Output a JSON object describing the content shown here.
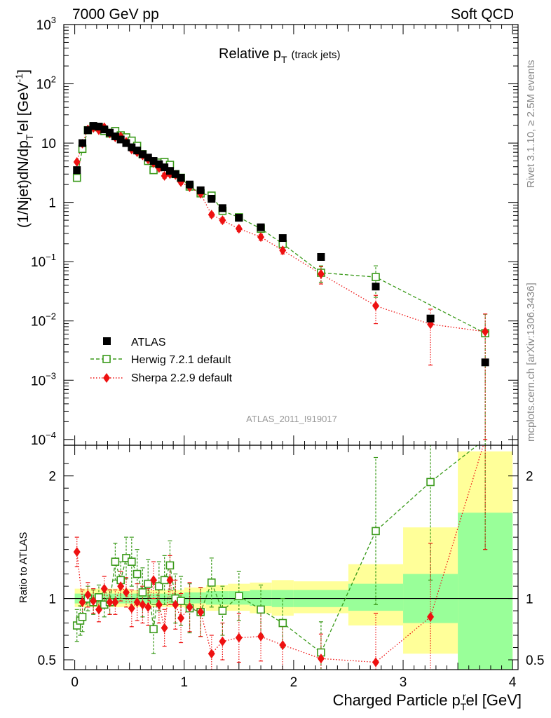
{
  "header": {
    "left": "7000 GeV pp",
    "right": "Soft QCD"
  },
  "side_labels": {
    "rivet": "Rivet 3.1.10, ≥ 2.5M events",
    "mcplots": "mcplots.cern.ch [arXiv:1306.3436]"
  },
  "analysis_id": "ATLAS_2011_I919017",
  "colors": {
    "atlas": "#000000",
    "herwig": "#3a9a1a",
    "sherpa": "#ee1111",
    "band_inner": "#99ff99",
    "band_outer": "#ffff99"
  },
  "chart_data": [
    {
      "type": "scatter",
      "panel": "main",
      "title_main": "Relative p",
      "title_sub": "T",
      "title_tail": "(track jets)",
      "ylabel": "(1/Njet)dN/dp_T^rel [GeV^-1]",
      "ylabel_parts": [
        "(1/Njet)dN/dp",
        "T",
        "r",
        "el [GeV",
        "-1",
        "]"
      ],
      "yscale": "log",
      "ylim": [
        8e-05,
        1000
      ],
      "xlim": [
        -0.1,
        4.05
      ],
      "grid": false,
      "legend_position": "bottom-left",
      "y_tick_labels": [
        {
          "v": 1000,
          "base": "10",
          "exp": "3"
        },
        {
          "v": 100,
          "base": "10",
          "exp": "2"
        },
        {
          "v": 10,
          "base": "10",
          "exp": ""
        },
        {
          "v": 1,
          "base": "1",
          "exp": ""
        },
        {
          "v": 0.1,
          "base": "10",
          "exp": "−1"
        },
        {
          "v": 0.01,
          "base": "10",
          "exp": "−2"
        },
        {
          "v": 0.001,
          "base": "10",
          "exp": "−3"
        },
        {
          "v": 0.0001,
          "base": "10",
          "exp": "−4"
        }
      ],
      "series": [
        {
          "name": "ATLAS",
          "marker": "square-filled",
          "x": [
            0.02,
            0.07,
            0.12,
            0.17,
            0.22,
            0.27,
            0.32,
            0.37,
            0.42,
            0.47,
            0.52,
            0.57,
            0.62,
            0.67,
            0.72,
            0.77,
            0.82,
            0.87,
            0.92,
            0.97,
            1.05,
            1.15,
            1.25,
            1.35,
            1.5,
            1.7,
            1.9,
            2.25,
            2.75,
            3.25,
            3.75
          ],
          "y": [
            3.5,
            10,
            16.5,
            19.5,
            19,
            17,
            15,
            13,
            11.5,
            10,
            8.5,
            7.5,
            6.5,
            5.7,
            5.0,
            4.4,
            3.9,
            3.4,
            3.0,
            2.6,
            2.0,
            1.6,
            1.15,
            0.8,
            0.55,
            0.38,
            0.25,
            0.12,
            0.038,
            0.011,
            0.002
          ]
        },
        {
          "name": "Herwig 7.2.1 default",
          "marker": "square-open",
          "line": "dashed",
          "x": [
            0.02,
            0.07,
            0.12,
            0.17,
            0.22,
            0.27,
            0.32,
            0.37,
            0.42,
            0.47,
            0.52,
            0.57,
            0.62,
            0.67,
            0.72,
            0.77,
            0.82,
            0.87,
            0.92,
            0.97,
            1.05,
            1.15,
            1.25,
            1.35,
            1.5,
            1.7,
            1.9,
            2.25,
            2.75,
            3.75
          ],
          "y": [
            2.6,
            8.0,
            16.5,
            19,
            18.5,
            16,
            14.5,
            16,
            13.5,
            12.5,
            11.0,
            9.0,
            6.5,
            5.0,
            3.5,
            4.7,
            4.8,
            4.3,
            3.0,
            2.6,
            1.85,
            1.42,
            1.3,
            0.72,
            0.56,
            0.36,
            0.2,
            0.065,
            0.055,
            0.0062
          ],
          "yerr": [
            0.2,
            0.5,
            0.8,
            0.9,
            0.9,
            0.8,
            0.7,
            0.8,
            0.7,
            0.7,
            0.6,
            0.5,
            0.4,
            0.35,
            0.3,
            0.35,
            0.35,
            0.3,
            0.25,
            0.2,
            0.15,
            0.12,
            0.1,
            0.07,
            0.05,
            0.04,
            0.025,
            0.02,
            0.03,
            0.0068
          ]
        },
        {
          "name": "Sherpa 2.2.9 default",
          "marker": "diamond-filled",
          "line": "dotted",
          "x": [
            0.02,
            0.07,
            0.12,
            0.17,
            0.22,
            0.27,
            0.32,
            0.37,
            0.42,
            0.47,
            0.52,
            0.57,
            0.62,
            0.67,
            0.72,
            0.77,
            0.82,
            0.87,
            0.92,
            0.97,
            1.05,
            1.15,
            1.25,
            1.35,
            1.5,
            1.7,
            1.9,
            2.25,
            2.75,
            3.25,
            3.75
          ],
          "y": [
            4.8,
            9.8,
            17,
            18,
            16.5,
            18.5,
            14.5,
            12.5,
            13,
            10.5,
            7.8,
            7.0,
            6.2,
            5.3,
            4.6,
            3.8,
            2.8,
            3.0,
            2.9,
            2.2,
            1.8,
            1.4,
            0.62,
            0.5,
            0.36,
            0.26,
            0.155,
            0.062,
            0.018,
            0.0088,
            0.0066
          ],
          "yerr": [
            0.3,
            0.6,
            0.9,
            0.9,
            0.9,
            1.0,
            0.8,
            0.7,
            0.7,
            0.6,
            0.5,
            0.45,
            0.4,
            0.35,
            0.3,
            0.3,
            0.25,
            0.25,
            0.25,
            0.2,
            0.15,
            0.12,
            0.06,
            0.05,
            0.04,
            0.03,
            0.02,
            0.02,
            0.009,
            0.007,
            0.0065
          ]
        }
      ]
    },
    {
      "type": "scatter",
      "panel": "ratio",
      "ylabel": "Ratio to ATLAS",
      "xlabel": "Charged Particle p_T^rel [GeV]",
      "xlabel_parts": [
        "Charged Particle p",
        "T",
        "r",
        "el [GeV]"
      ],
      "ylim": [
        0.42,
        2.25
      ],
      "xlim": [
        -0.1,
        4.05
      ],
      "reference_line": 1,
      "x_tick_labels": [
        "0",
        "1",
        "2",
        "3",
        "4"
      ],
      "y_tick_labels": [
        "0.5",
        "1",
        "2"
      ],
      "bands": [
        {
          "x0": 0.0,
          "x1": 0.5,
          "inner": [
            0.96,
            1.04
          ],
          "outer": [
            0.93,
            1.08
          ]
        },
        {
          "x0": 0.5,
          "x1": 1.0,
          "inner": [
            0.96,
            1.04
          ],
          "outer": [
            0.93,
            1.07
          ]
        },
        {
          "x0": 1.0,
          "x1": 1.2,
          "inner": [
            0.96,
            1.05
          ],
          "outer": [
            0.92,
            1.09
          ]
        },
        {
          "x0": 1.2,
          "x1": 1.4,
          "inner": [
            0.95,
            1.06
          ],
          "outer": [
            0.9,
            1.11
          ]
        },
        {
          "x0": 1.4,
          "x1": 1.6,
          "inner": [
            0.95,
            1.06
          ],
          "outer": [
            0.9,
            1.12
          ]
        },
        {
          "x0": 1.6,
          "x1": 1.8,
          "inner": [
            0.94,
            1.07
          ],
          "outer": [
            0.88,
            1.13
          ]
        },
        {
          "x0": 1.8,
          "x1": 2.0,
          "inner": [
            0.93,
            1.07
          ],
          "outer": [
            0.86,
            1.15
          ]
        },
        {
          "x0": 2.0,
          "x1": 2.5,
          "inner": [
            0.93,
            1.07
          ],
          "outer": [
            0.88,
            1.14
          ]
        },
        {
          "x0": 2.5,
          "x1": 3.0,
          "inner": [
            0.9,
            1.12
          ],
          "outer": [
            0.78,
            1.28
          ]
        },
        {
          "x0": 3.0,
          "x1": 3.5,
          "inner": [
            0.8,
            1.2
          ],
          "outer": [
            0.55,
            1.58
          ]
        },
        {
          "x0": 3.5,
          "x1": 4.0,
          "inner": [
            0.42,
            1.7
          ],
          "outer": [
            0.42,
            2.2
          ]
        }
      ],
      "series": [
        {
          "name": "Herwig 7.2.1 default",
          "x": [
            0.02,
            0.05,
            0.07,
            0.12,
            0.17,
            0.22,
            0.27,
            0.32,
            0.37,
            0.42,
            0.47,
            0.52,
            0.57,
            0.62,
            0.67,
            0.72,
            0.77,
            0.82,
            0.87,
            0.92,
            0.97,
            1.05,
            1.15,
            1.25,
            1.35,
            1.5,
            1.7,
            1.9,
            2.25,
            2.75,
            3.25,
            3.75
          ],
          "y": [
            0.78,
            0.82,
            0.85,
            1.0,
            0.97,
            1.01,
            0.95,
            0.97,
            1.3,
            1.15,
            1.33,
            1.3,
            1.2,
            1.05,
            1.12,
            0.75,
            1.1,
            1.15,
            1.27,
            1.0,
            0.98,
            0.92,
            0.89,
            1.13,
            0.9,
            1.02,
            0.91,
            0.8,
            0.56,
            1.55,
            1.95,
            2.3
          ],
          "yerr": [
            0.13,
            0.12,
            0.12,
            0.1,
            0.1,
            0.1,
            0.1,
            0.1,
            0.15,
            0.15,
            0.17,
            0.2,
            0.2,
            0.2,
            0.2,
            0.2,
            0.2,
            0.2,
            0.2,
            0.2,
            0.2,
            0.2,
            0.2,
            0.2,
            0.2,
            0.2,
            0.2,
            0.2,
            0.25,
            0.6,
            0.8,
            0.9
          ]
        },
        {
          "name": "Sherpa 2.2.9 default",
          "x": [
            0.02,
            0.07,
            0.12,
            0.17,
            0.22,
            0.27,
            0.32,
            0.37,
            0.42,
            0.47,
            0.52,
            0.57,
            0.62,
            0.67,
            0.72,
            0.77,
            0.82,
            0.87,
            0.92,
            0.97,
            1.05,
            1.15,
            1.25,
            1.35,
            1.5,
            1.7,
            1.9,
            2.25,
            2.75,
            3.25,
            3.75
          ],
          "y": [
            1.38,
            0.97,
            1.03,
            0.98,
            0.91,
            1.08,
            0.97,
            0.97,
            1.1,
            1.05,
            0.92,
            0.97,
            0.95,
            0.93,
            1.15,
            0.95,
            0.76,
            1.15,
            0.95,
            0.84,
            0.93,
            0.89,
            0.55,
            0.65,
            0.68,
            0.69,
            0.62,
            0.51,
            0.48,
            0.85,
            2.3
          ],
          "yerr": [
            0.12,
            0.1,
            0.1,
            0.1,
            0.1,
            0.1,
            0.1,
            0.1,
            0.12,
            0.12,
            0.15,
            0.15,
            0.15,
            0.15,
            0.15,
            0.15,
            0.15,
            0.2,
            0.2,
            0.2,
            0.2,
            0.2,
            0.15,
            0.15,
            0.2,
            0.2,
            0.2,
            0.2,
            0.4,
            0.6,
            0.9
          ]
        }
      ]
    }
  ]
}
